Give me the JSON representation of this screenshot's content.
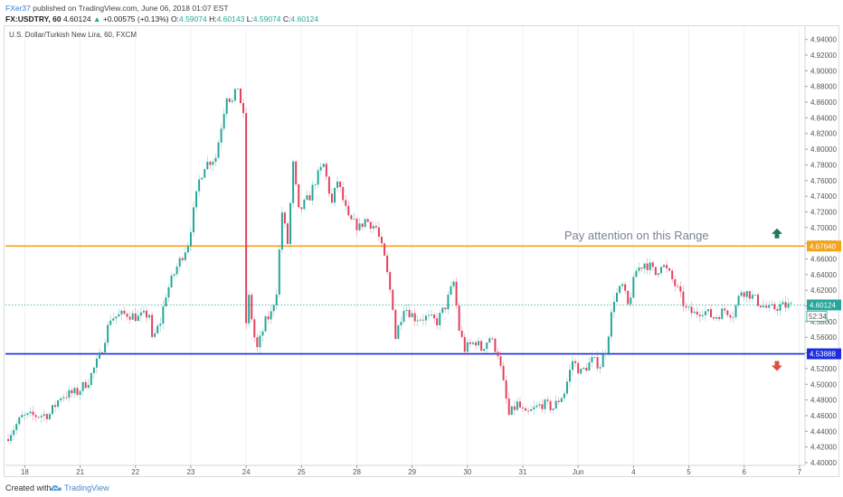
{
  "header": {
    "author": "FXer37",
    "published_text": " published on TradingView.com, June 06, 2018 01:07 EST",
    "symbol": "FX:USDTRY, 60",
    "last": "4.60124",
    "change": "+0.00575 (+0.13%)",
    "o_label": "O:",
    "o_value": "4.59074",
    "h_label": "H:",
    "h_value": "4.60143",
    "l_label": "L:",
    "l_value": "4.59074",
    "c_label": "C:",
    "c_value": "4.60124"
  },
  "chart_title": "U.S. Dollar/Turkish New Lira, 60, FXCM",
  "annotation": "Pay attention on this Range",
  "footer": {
    "created": "Created with",
    "brand": "TradingView"
  },
  "colors": {
    "up": "#26a69a",
    "down": "#e3425c",
    "resistance": "#f5a31a",
    "support": "#1a2de0",
    "price_line": "#26a69a",
    "arrow_up": "#1f7a5a",
    "arrow_down": "#d9523a"
  },
  "chart_data": {
    "type": "candlestick",
    "title": "U.S. Dollar/Turkish New Lira, 60, FXCM",
    "ylim": [
      4.4,
      4.95
    ],
    "y_ticks": [
      "4.94000",
      "4.92000",
      "4.90000",
      "4.88000",
      "4.86000",
      "4.84000",
      "4.82000",
      "4.80000",
      "4.78000",
      "4.76000",
      "4.74000",
      "4.72000",
      "4.70000",
      "4.68000",
      "4.66000",
      "4.64000",
      "4.62000",
      "4.60000",
      "4.58000",
      "4.56000",
      "4.54000",
      "4.52000",
      "4.50000",
      "4.48000",
      "4.46000",
      "4.44000",
      "4.42000",
      "4.40000"
    ],
    "x_ticks": [
      {
        "label": "18",
        "x": 0.35
      },
      {
        "label": "21",
        "x": 1.35
      },
      {
        "label": "22",
        "x": 2.35
      },
      {
        "label": "23",
        "x": 3.35
      },
      {
        "label": "24",
        "x": 4.35
      },
      {
        "label": "25",
        "x": 5.35
      },
      {
        "label": "28",
        "x": 6.35
      },
      {
        "label": "29",
        "x": 7.35
      },
      {
        "label": "30",
        "x": 8.35
      },
      {
        "label": "31",
        "x": 9.35
      },
      {
        "label": "Jun",
        "x": 10.35
      },
      {
        "label": "4",
        "x": 11.35
      },
      {
        "label": "5",
        "x": 12.35
      },
      {
        "label": "6",
        "x": 13.35
      },
      {
        "label": "7",
        "x": 14.35
      }
    ],
    "x_range": [
      0,
      14.45
    ],
    "path": [
      [
        0.0,
        4.43
      ],
      [
        0.3,
        4.458
      ],
      [
        0.8,
        4.462
      ],
      [
        1.0,
        4.485
      ],
      [
        1.3,
        4.49
      ],
      [
        1.5,
        4.505
      ],
      [
        1.7,
        4.535
      ],
      [
        1.9,
        4.585
      ],
      [
        2.2,
        4.59
      ],
      [
        2.4,
        4.585
      ],
      [
        2.6,
        4.59
      ],
      [
        2.65,
        4.555
      ],
      [
        2.8,
        4.58
      ],
      [
        2.9,
        4.615
      ],
      [
        3.1,
        4.65
      ],
      [
        3.3,
        4.68
      ],
      [
        3.5,
        4.76
      ],
      [
        3.6,
        4.78
      ],
      [
        3.8,
        4.79
      ],
      [
        4.0,
        4.87
      ],
      [
        4.1,
        4.86
      ],
      [
        4.2,
        4.88
      ],
      [
        4.3,
        4.84
      ],
      [
        4.32,
        4.56
      ],
      [
        4.4,
        4.61
      ],
      [
        4.5,
        4.56
      ],
      [
        4.55,
        4.545
      ],
      [
        4.7,
        4.58
      ],
      [
        4.8,
        4.59
      ],
      [
        4.9,
        4.62
      ],
      [
        5.0,
        4.72
      ],
      [
        5.1,
        4.68
      ],
      [
        5.2,
        4.78
      ],
      [
        5.3,
        4.72
      ],
      [
        5.5,
        4.74
      ],
      [
        5.6,
        4.76
      ],
      [
        5.75,
        4.78
      ],
      [
        5.9,
        4.73
      ],
      [
        6.0,
        4.76
      ],
      [
        6.2,
        4.71
      ],
      [
        6.4,
        4.7
      ],
      [
        6.5,
        4.71
      ],
      [
        6.7,
        4.7
      ],
      [
        6.85,
        4.66
      ],
      [
        7.0,
        4.6
      ],
      [
        7.05,
        4.56
      ],
      [
        7.2,
        4.6
      ],
      [
        7.4,
        4.585
      ],
      [
        7.6,
        4.585
      ],
      [
        7.8,
        4.58
      ],
      [
        7.95,
        4.6
      ],
      [
        8.1,
        4.63
      ],
      [
        8.2,
        4.57
      ],
      [
        8.3,
        4.545
      ],
      [
        8.5,
        4.555
      ],
      [
        8.6,
        4.545
      ],
      [
        8.75,
        4.56
      ],
      [
        8.9,
        4.54
      ],
      [
        9.0,
        4.5
      ],
      [
        9.1,
        4.46
      ],
      [
        9.25,
        4.475
      ],
      [
        9.4,
        4.46
      ],
      [
        9.55,
        4.468
      ],
      [
        9.7,
        4.475
      ],
      [
        9.9,
        4.47
      ],
      [
        10.1,
        4.49
      ],
      [
        10.25,
        4.53
      ],
      [
        10.4,
        4.515
      ],
      [
        10.6,
        4.53
      ],
      [
        10.75,
        4.525
      ],
      [
        10.85,
        4.545
      ],
      [
        11.0,
        4.61
      ],
      [
        11.15,
        4.625
      ],
      [
        11.25,
        4.6
      ],
      [
        11.4,
        4.645
      ],
      [
        11.55,
        4.655
      ],
      [
        11.65,
        4.65
      ],
      [
        11.75,
        4.64
      ],
      [
        11.85,
        4.655
      ],
      [
        12.0,
        4.64
      ],
      [
        12.15,
        4.62
      ],
      [
        12.3,
        4.595
      ],
      [
        12.45,
        4.59
      ],
      [
        12.6,
        4.595
      ],
      [
        12.8,
        4.585
      ],
      [
        13.0,
        4.595
      ],
      [
        13.15,
        4.59
      ],
      [
        13.3,
        4.62
      ],
      [
        13.45,
        4.615
      ],
      [
        13.6,
        4.605
      ],
      [
        13.8,
        4.595
      ],
      [
        14.0,
        4.6
      ],
      [
        14.2,
        4.6
      ]
    ],
    "levels": [
      {
        "name": "resistance",
        "value": 4.6764,
        "label": "4.67640"
      },
      {
        "name": "support",
        "value": 4.53888,
        "label": "4.53888"
      },
      {
        "name": "last",
        "value": 4.60124,
        "label": "4.60124",
        "countdown": "52:34"
      }
    ],
    "annotation": {
      "text": "Pay attention on this Range",
      "x": 10.1,
      "y": 4.685
    },
    "arrows": [
      {
        "dir": "up",
        "y": 4.692
      },
      {
        "dir": "down",
        "y": 4.524
      }
    ]
  }
}
